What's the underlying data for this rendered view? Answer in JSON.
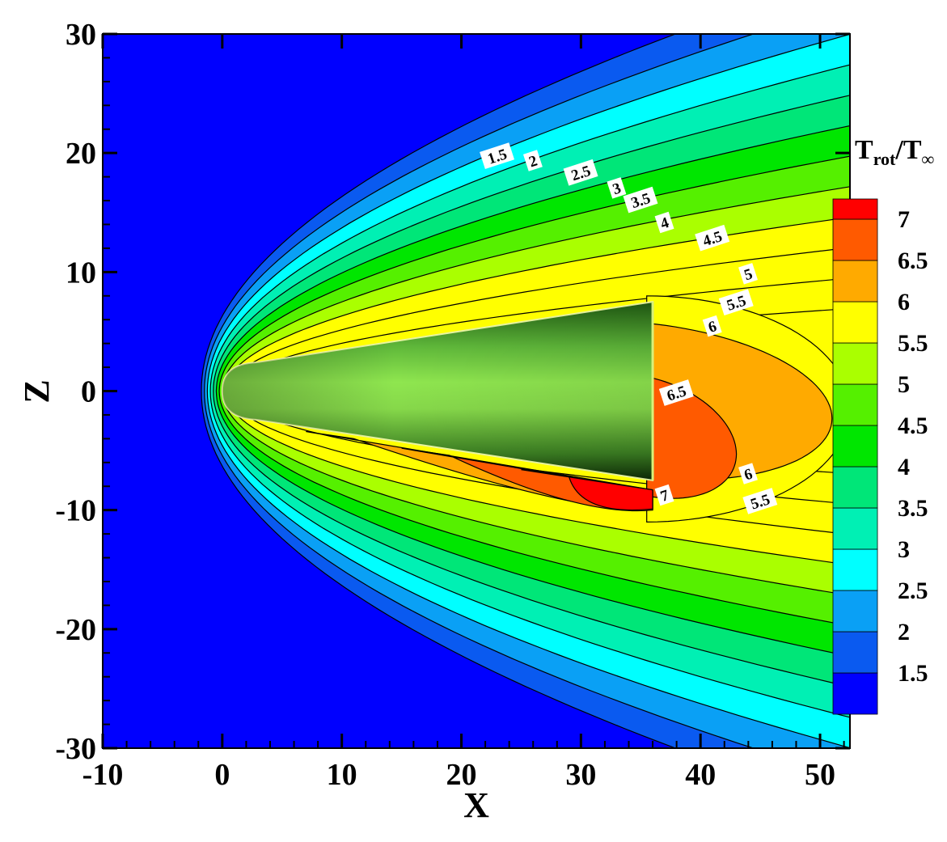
{
  "chart_data": {
    "type": "contour",
    "xlabel": "X",
    "ylabel": "Z",
    "xlim": [
      -10,
      52.5
    ],
    "ylim": [
      -30,
      30
    ],
    "x_ticks": [
      -10,
      0,
      10,
      20,
      30,
      40,
      50
    ],
    "y_ticks": [
      -30,
      -20,
      -10,
      0,
      10,
      20,
      30
    ],
    "x_tick_labels": [
      "-10",
      "0",
      "10",
      "20",
      "30",
      "40",
      "50"
    ],
    "y_tick_labels": [
      "-30",
      "-20",
      "-10",
      "0",
      "10",
      "20",
      "30"
    ],
    "legend": {
      "title_main": "T",
      "title_sub1": "rot",
      "title_slash": "/T",
      "title_sub2": "∞",
      "placement": "right",
      "levels": [
        1.5,
        2,
        2.5,
        3,
        3.5,
        4,
        4.5,
        5,
        5.5,
        6,
        6.5,
        7
      ],
      "level_labels": [
        "1.5",
        "2",
        "2.5",
        "3",
        "3.5",
        "4",
        "4.5",
        "5",
        "5.5",
        "6",
        "6.5",
        "7"
      ],
      "colors": [
        "#0000ff",
        "#0a5af0",
        "#0aa0f5",
        "#00ffff",
        "#00f0b4",
        "#00e678",
        "#00e600",
        "#55f000",
        "#aaff00",
        "#ffff00",
        "#ffaa00",
        "#ff5a00",
        "#ff0000"
      ]
    },
    "contour_labels": [
      {
        "text": "1.5",
        "x": 23.0,
        "z": 19.7
      },
      {
        "text": "2",
        "x": 26.0,
        "z": 19.3
      },
      {
        "text": "2.5",
        "x": 30.0,
        "z": 18.3
      },
      {
        "text": "3",
        "x": 33.0,
        "z": 17.0
      },
      {
        "text": "3.5",
        "x": 35.0,
        "z": 16.0
      },
      {
        "text": "4",
        "x": 37.0,
        "z": 14.1
      },
      {
        "text": "4.5",
        "x": 41.0,
        "z": 12.8
      },
      {
        "text": "5",
        "x": 44.0,
        "z": 9.8
      },
      {
        "text": "5.5",
        "x": 43.0,
        "z": 7.4
      },
      {
        "text": "6",
        "x": 41.0,
        "z": 5.4
      },
      {
        "text": "6.5",
        "x": 38.0,
        "z": -0.2
      },
      {
        "text": "7",
        "x": 37.0,
        "z": -8.8
      },
      {
        "text": "6",
        "x": 44.0,
        "z": -7.0
      },
      {
        "text": "5.5",
        "x": 45.0,
        "z": -9.3
      }
    ],
    "body": {
      "nose_x": 0,
      "base_x": 36,
      "base_z_top": 7.5,
      "base_z_bottom": -7.5
    }
  }
}
